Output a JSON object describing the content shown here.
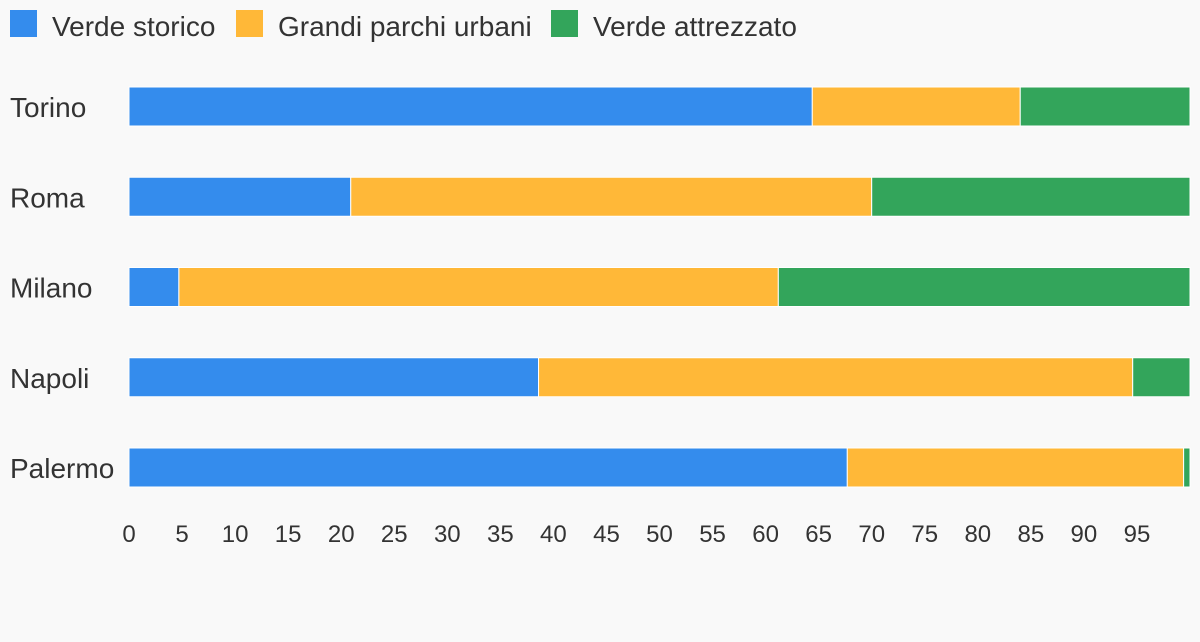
{
  "chart_data": {
    "type": "bar",
    "orientation": "horizontal",
    "stacked": true,
    "categories": [
      "Torino",
      "Roma",
      "Milano",
      "Napoli",
      "Palermo"
    ],
    "series": [
      {
        "name": "Verde storico",
        "color": "#348ced",
        "values": [
          64.4,
          20.9,
          4.7,
          38.6,
          67.7
        ]
      },
      {
        "name": "Grandi parchi urbani",
        "color": "#ffb838",
        "values": [
          19.6,
          49.1,
          56.5,
          56.0,
          31.7
        ]
      },
      {
        "name": "Verde attrezzato",
        "color": "#33a55b",
        "values": [
          16.0,
          30.0,
          38.8,
          5.4,
          0.6
        ]
      }
    ],
    "xticks": [
      "0",
      "5",
      "10",
      "15",
      "20",
      "25",
      "30",
      "35",
      "40",
      "45",
      "50",
      "55",
      "60",
      "65",
      "70",
      "75",
      "80",
      "85",
      "90",
      "95"
    ],
    "xlim": [
      0,
      100
    ],
    "grid": false,
    "legend_position": "top-left",
    "background": "#f9f9f9"
  }
}
